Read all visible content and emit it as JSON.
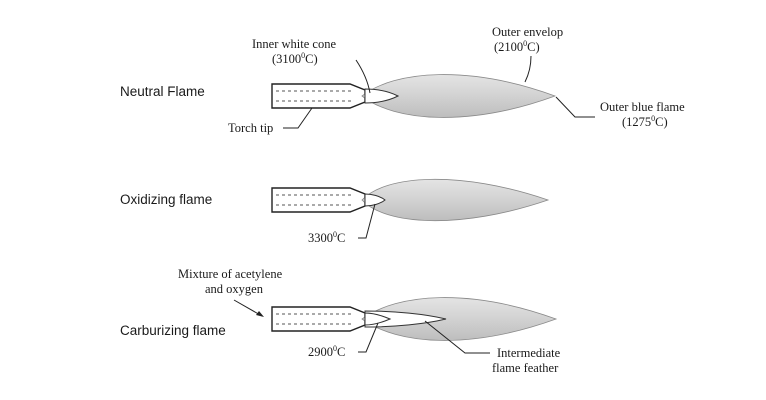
{
  "flames": {
    "neutral": {
      "name": "Neutral Flame",
      "inner_cone_label": "Inner white cone",
      "inner_cone_temp": "3100",
      "outer_envelope_label": "Outer envelop",
      "outer_envelope_temp": "2100",
      "outer_blue_label": "Outer blue flame",
      "outer_blue_temp": "1275",
      "torch_tip_label": "Torch tip"
    },
    "oxidizing": {
      "name": "Oxidizing flame",
      "cone_temp": "3300"
    },
    "carburizing": {
      "name": "Carburizing flame",
      "mixture_label_line1": "Mixture of acetylene",
      "mixture_label_line2": "and oxygen",
      "cone_temp": "2900",
      "feather_label_line1": "Intermediate",
      "feather_label_line2": "flame feather"
    }
  },
  "units": {
    "degree_sup": "0",
    "celsius": "C"
  },
  "colors": {
    "flame_light": "#e6e6e6",
    "flame_dark": "#b9b9b9",
    "outline": "#222222"
  }
}
